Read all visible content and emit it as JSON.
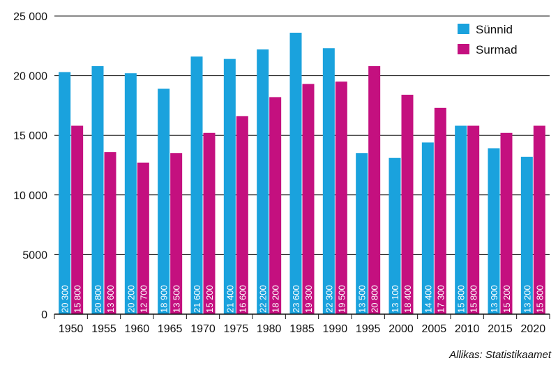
{
  "chart_data": {
    "type": "bar",
    "title": "",
    "xlabel": "",
    "ylabel": "",
    "categories": [
      "1950",
      "1955",
      "1960",
      "1965",
      "1970",
      "1975",
      "1980",
      "1985",
      "1990",
      "1995",
      "2000",
      "2005",
      "2010",
      "2015",
      "2020"
    ],
    "series": [
      {
        "name": "Sünnid",
        "color": "#1aa2dd",
        "values": [
          20300,
          20800,
          20200,
          18900,
          21600,
          21400,
          22200,
          23600,
          22300,
          13500,
          13100,
          14400,
          15800,
          13900,
          13200
        ],
        "labels": [
          "20 300",
          "20 800",
          "20 200",
          "18 900",
          "21 600",
          "21 400",
          "22 200",
          "23 600",
          "22 300",
          "13 500",
          "13 100",
          "14 400",
          "15 800",
          "13 900",
          "13 200"
        ]
      },
      {
        "name": "Surmad",
        "color": "#c4107f",
        "values": [
          15800,
          13600,
          12700,
          13500,
          15200,
          16600,
          18200,
          19300,
          19500,
          20800,
          18400,
          17300,
          15800,
          15200,
          15800
        ],
        "labels": [
          "15 800",
          "13 600",
          "12 700",
          "13 500",
          "15 200",
          "16 600",
          "18 200",
          "19 300",
          "19 500",
          "20 800",
          "18 400",
          "17 300",
          "15 800",
          "15 200",
          "15 800"
        ]
      }
    ],
    "ylim": [
      0,
      25000
    ],
    "yticks": [
      0,
      5000,
      10000,
      15000,
      20000,
      25000
    ],
    "ytick_labels": [
      "0",
      "5000",
      "10 000",
      "15 000",
      "20 000",
      "25 000"
    ],
    "grid": true,
    "legend_position": "top-right",
    "source": "Allikas: Statistikaamet"
  }
}
